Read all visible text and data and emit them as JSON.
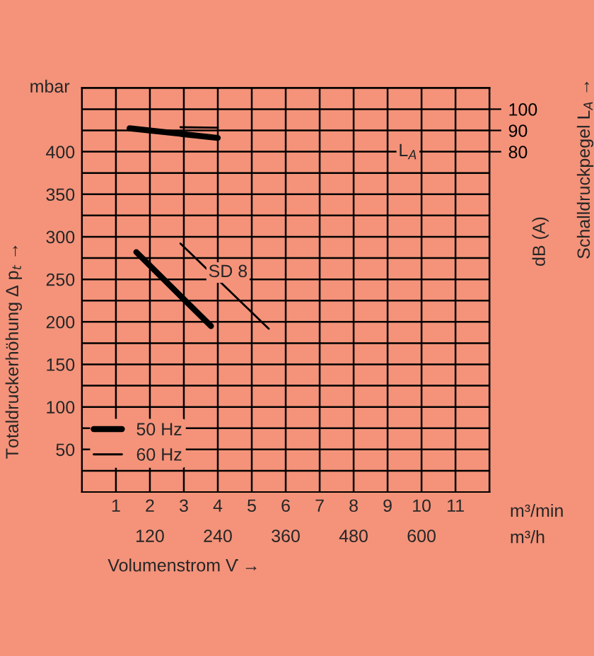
{
  "chart_data": {
    "type": "line",
    "xlabel": "Volumenstrom V̇ →",
    "ylabel": "Totaldruckerhöhung Δ p$_{t}$ →",
    "y2label": "Schalldruckpegel L$_{A}$ →",
    "xlim": [
      0,
      12
    ],
    "xticks": [
      1,
      2,
      3,
      4,
      5,
      6,
      7,
      8,
      9,
      10,
      11,
      {
        "value": 12,
        "label": null
      }
    ],
    "x2lim": [
      0,
      720
    ],
    "x2ticks": [
      120,
      240,
      360,
      480,
      600
    ],
    "ylim": [
      0,
      475
    ],
    "yticks": [
      {
        "value": 25,
        "label": null
      },
      50,
      {
        "value": 75,
        "label": null
      },
      100,
      {
        "value": 125,
        "label": null
      },
      150,
      {
        "value": 175,
        "label": null
      },
      200,
      {
        "value": 225,
        "label": null
      },
      250,
      {
        "value": 275,
        "label": null
      },
      300,
      {
        "value": 325,
        "label": null
      },
      350,
      {
        "value": 375,
        "label": null
      },
      400,
      {
        "value": 425,
        "label": null
      },
      {
        "value": 450,
        "label": null
      }
    ],
    "y2lim": [
      -80,
      110
    ],
    "y2ticks": [
      80,
      90,
      100
    ],
    "grid": true,
    "legend": "bottom left",
    "marker": "none",
    "line_style": "solid",
    "series": [
      {
        "name": "50 Hz",
        "color": "#000000",
        "x": [
          1.6,
          3.8
        ],
        "values": [
          282,
          195
        ]
      },
      {
        "name": "60 Hz",
        "color": "#000000",
        "x": [
          2.9,
          5.5
        ],
        "values": [
          292,
          192
        ]
      },
      {
        "color": "#000000",
        "axis": "y2",
        "x": [
          1.4,
          4.0
        ],
        "values": [
          91,
          86.5
        ]
      },
      {
        "color": "#000000",
        "axis": "y2",
        "x": [
          2.9,
          4.0
        ],
        "values": [
          91.5,
          91.3
        ]
      }
    ],
    "annotations": [
      {
        "text": "SD 8",
        "x": 4.3,
        "y": 258
      },
      {
        "text": "L$_{A}$",
        "x": 9.6,
        "y": 400
      },
      "mbar",
      "dB (A)",
      "m³/min",
      "m³/h"
    ]
  }
}
